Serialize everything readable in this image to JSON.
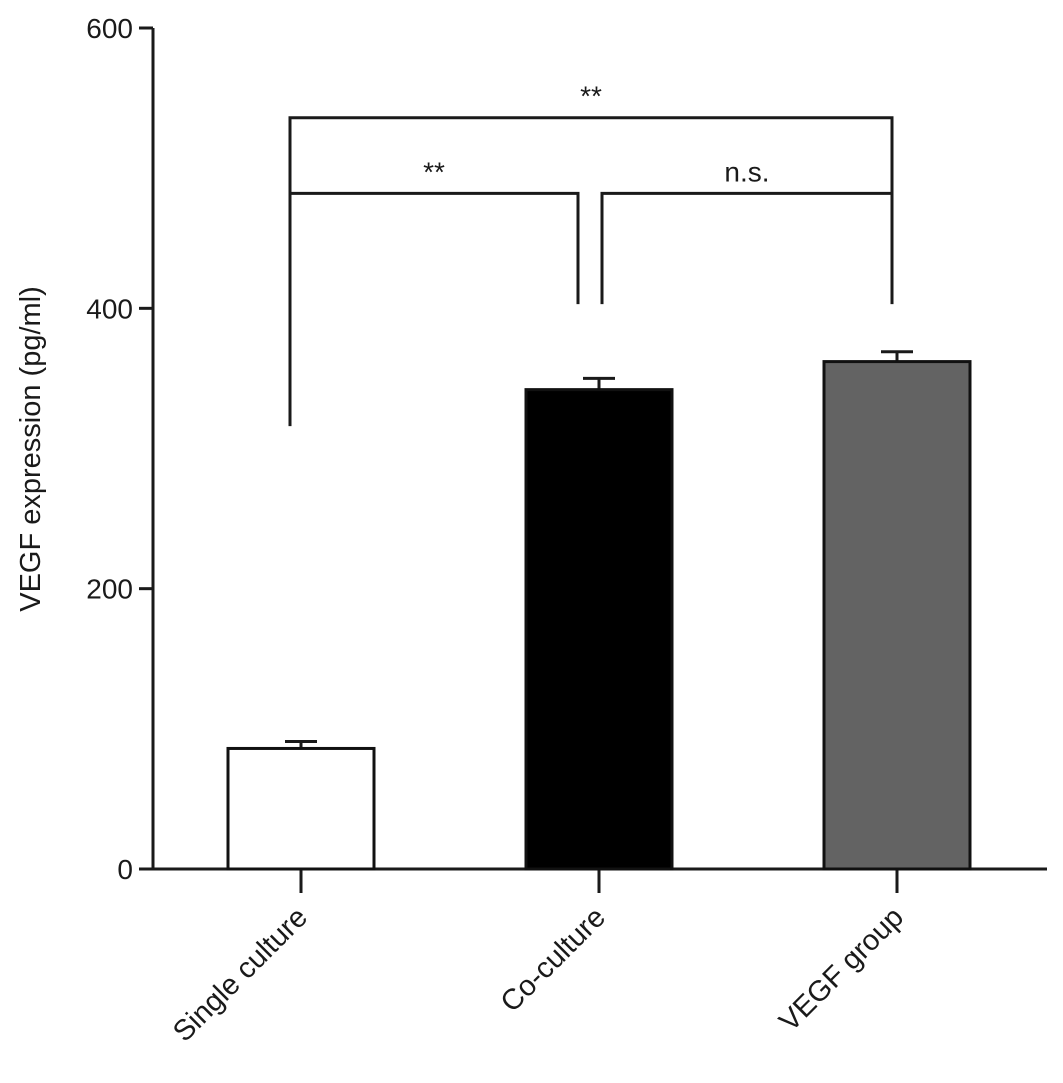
{
  "chart_data": {
    "type": "bar",
    "title": "",
    "xlabel": "",
    "ylabel": "VEGF expression (pg/ml)",
    "ylim": [
      0,
      600
    ],
    "yticks": [
      0,
      200,
      400,
      600
    ],
    "categories": [
      "Single culture",
      "Co-culture",
      "VEGF group"
    ],
    "values": [
      86,
      342,
      362
    ],
    "errors": [
      5,
      8,
      7
    ],
    "colors": [
      "#ffffff",
      "#000000",
      "#636363"
    ],
    "grid": false,
    "significance": [
      {
        "from": 0,
        "to": 1,
        "label": "**",
        "y": 482
      },
      {
        "from": 1,
        "to": 2,
        "label": "n.s.",
        "y": 482
      },
      {
        "from": 0,
        "to": 2,
        "label": "**",
        "y": 536
      }
    ]
  }
}
